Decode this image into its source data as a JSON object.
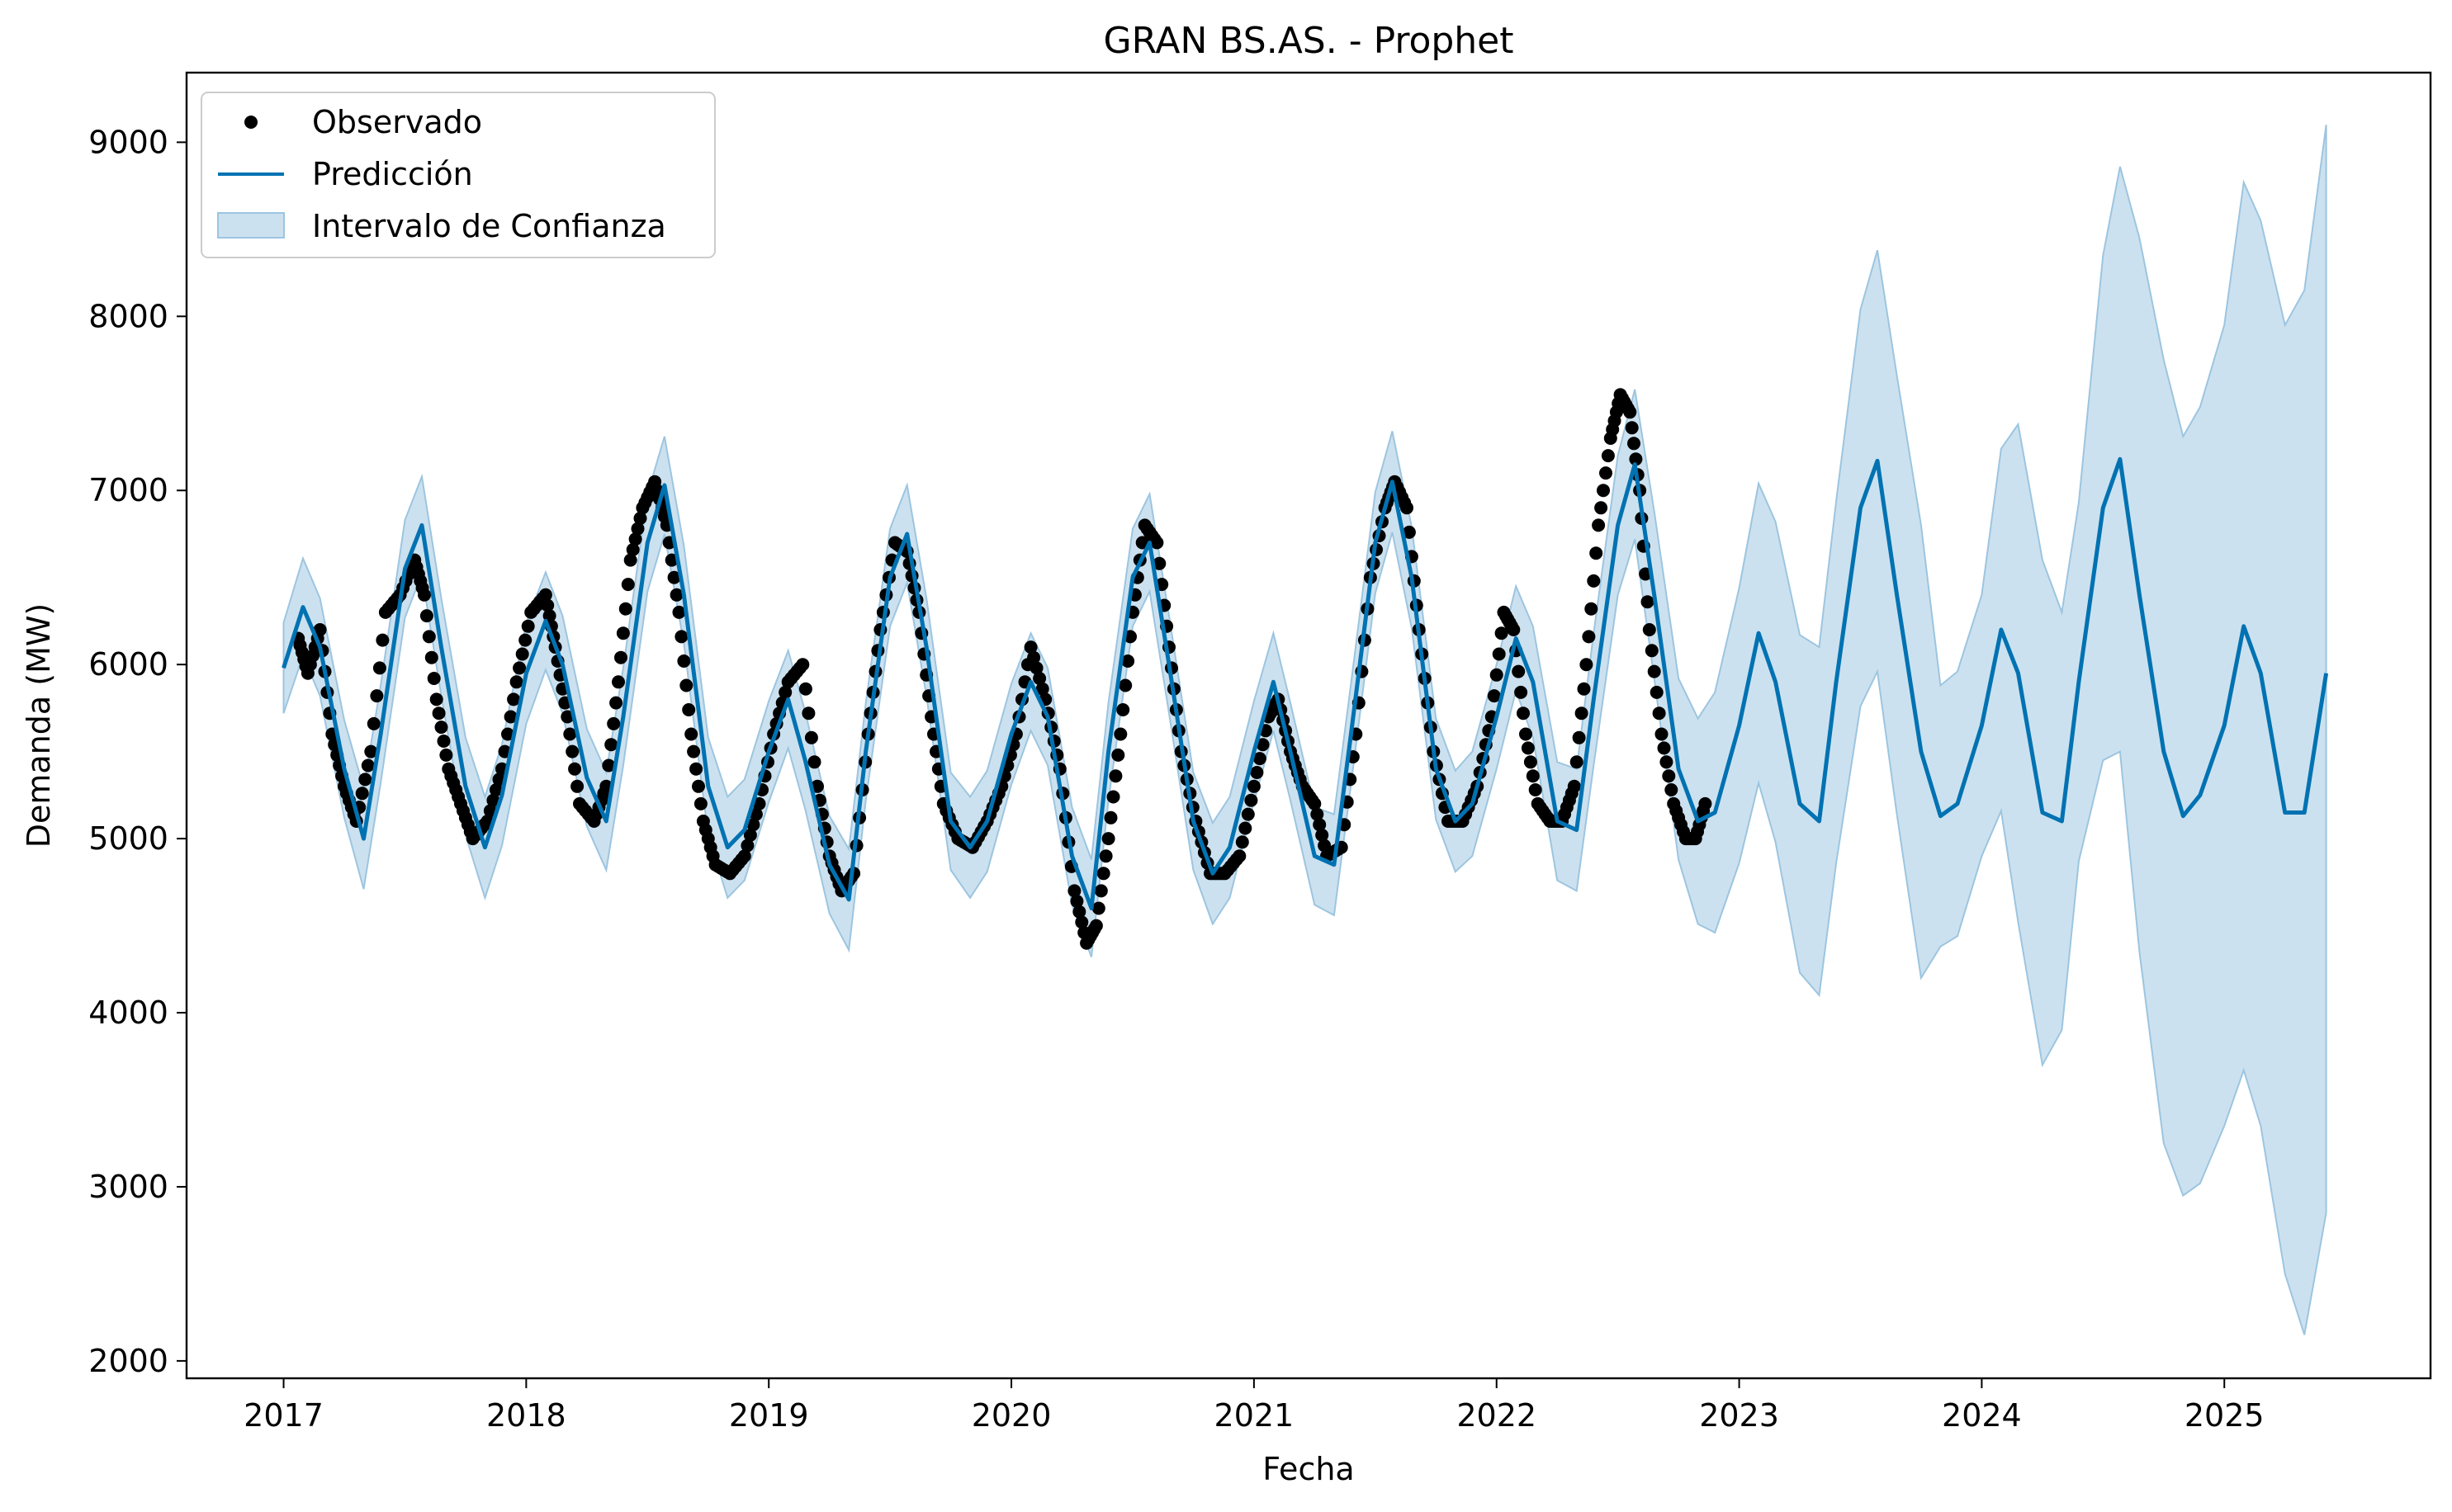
{
  "chart_data": {
    "type": "line",
    "title": "GRAN BS.AS. - Prophet",
    "xlabel": "Fecha",
    "ylabel": "Demanda (MW)",
    "xlim": [
      2016.6,
      2025.85
    ],
    "ylim": [
      1900,
      9400
    ],
    "x_ticks": [
      "2017",
      "2018",
      "2019",
      "2020",
      "2021",
      "2022",
      "2023",
      "2024",
      "2025"
    ],
    "y_ticks": [
      "2000",
      "3000",
      "4000",
      "5000",
      "6000",
      "7000",
      "8000",
      "9000"
    ],
    "legend": {
      "position": "top-left",
      "entries": [
        "Observado",
        "Predicción",
        "Intervalo de Confianza"
      ]
    },
    "colors": {
      "observed": "#000000",
      "prediction": "#0072b2",
      "interval_fill": "#cce1ef",
      "interval_edge": "#9cc5e0"
    },
    "series": [
      {
        "name": "Predicción",
        "x": [
          2017.0,
          2017.08,
          2017.15,
          2017.25,
          2017.33,
          2017.4,
          2017.5,
          2017.57,
          2017.65,
          2017.75,
          2017.83,
          2017.9,
          2018.0,
          2018.08,
          2018.15,
          2018.25,
          2018.33,
          2018.4,
          2018.5,
          2018.57,
          2018.65,
          2018.75,
          2018.83,
          2018.9,
          2019.0,
          2019.08,
          2019.15,
          2019.25,
          2019.33,
          2019.4,
          2019.5,
          2019.57,
          2019.65,
          2019.75,
          2019.83,
          2019.9,
          2020.0,
          2020.08,
          2020.15,
          2020.25,
          2020.33,
          2020.4,
          2020.5,
          2020.57,
          2020.65,
          2020.75,
          2020.83,
          2020.9,
          2021.0,
          2021.08,
          2021.15,
          2021.25,
          2021.33,
          2021.4,
          2021.5,
          2021.57,
          2021.65,
          2021.75,
          2021.83,
          2021.9,
          2022.0,
          2022.08,
          2022.15,
          2022.25,
          2022.33,
          2022.4,
          2022.5,
          2022.57,
          2022.65,
          2022.75,
          2022.83,
          2022.9,
          2023.0,
          2023.08,
          2023.15,
          2023.25,
          2023.33,
          2023.4,
          2023.5,
          2023.57,
          2023.65,
          2023.75,
          2023.83,
          2023.9,
          2024.0,
          2024.08,
          2024.15,
          2024.25,
          2024.33,
          2024.4,
          2024.5,
          2024.57,
          2024.65,
          2024.75,
          2024.83,
          2024.9,
          2025.0,
          2025.08,
          2025.15,
          2025.25,
          2025.33,
          2025.42
        ],
        "y": [
          5980,
          6330,
          6100,
          5400,
          5000,
          5600,
          6550,
          6800,
          6100,
          5300,
          4950,
          5250,
          5950,
          6250,
          6000,
          5350,
          5100,
          5700,
          6700,
          7030,
          6400,
          5300,
          4950,
          5050,
          5500,
          5800,
          5450,
          4850,
          4650,
          5500,
          6500,
          6750,
          6100,
          5100,
          4950,
          5100,
          5600,
          5900,
          5700,
          4900,
          4600,
          5500,
          6500,
          6700,
          6000,
          5100,
          4800,
          4950,
          5500,
          5900,
          5500,
          4900,
          4850,
          5600,
          6700,
          7050,
          6500,
          5400,
          5100,
          5200,
          5700,
          6150,
          5900,
          5100,
          5050,
          5800,
          6800,
          7150,
          6400,
          5400,
          5100,
          5150,
          5650,
          6180,
          5900,
          5200,
          5100,
          5900,
          6900,
          7170,
          6400,
          5500,
          5130,
          5200,
          5650,
          6200,
          5950,
          5150,
          5100,
          5900,
          6900,
          7180,
          6400,
          5500,
          5130,
          5250,
          5650,
          6220,
          5950,
          5150,
          5150,
          5950
        ]
      },
      {
        "name": "Intervalo de Confianza",
        "x": [
          2017.0,
          2017.08,
          2017.15,
          2017.25,
          2017.33,
          2017.4,
          2017.5,
          2017.57,
          2017.65,
          2017.75,
          2017.83,
          2017.9,
          2018.0,
          2018.08,
          2018.15,
          2018.25,
          2018.33,
          2018.4,
          2018.5,
          2018.57,
          2018.65,
          2018.75,
          2018.83,
          2018.9,
          2019.0,
          2019.08,
          2019.15,
          2019.25,
          2019.33,
          2019.4,
          2019.5,
          2019.57,
          2019.65,
          2019.75,
          2019.83,
          2019.9,
          2020.0,
          2020.08,
          2020.15,
          2020.25,
          2020.33,
          2020.4,
          2020.5,
          2020.57,
          2020.65,
          2020.75,
          2020.83,
          2020.9,
          2021.0,
          2021.08,
          2021.15,
          2021.25,
          2021.33,
          2021.4,
          2021.5,
          2021.57,
          2021.65,
          2021.75,
          2021.83,
          2021.9,
          2022.0,
          2022.08,
          2022.15,
          2022.25,
          2022.33,
          2022.4,
          2022.5,
          2022.57,
          2022.65,
          2022.75,
          2022.83,
          2022.9,
          2023.0,
          2023.08,
          2023.15,
          2023.25,
          2023.33,
          2023.4,
          2023.5,
          2023.57,
          2023.65,
          2023.75,
          2023.83,
          2023.9,
          2024.0,
          2024.08,
          2024.15,
          2024.25,
          2024.33,
          2024.4,
          2024.5,
          2024.57,
          2024.65,
          2024.75,
          2024.83,
          2024.9,
          2025.0,
          2025.08,
          2025.15,
          2025.25,
          2025.33,
          2025.42
        ],
        "lower": [
          5720,
          6050,
          5820,
          5120,
          4710,
          5320,
          6270,
          6520,
          5820,
          5020,
          4660,
          4960,
          5660,
          5970,
          5720,
          5070,
          4820,
          5420,
          6420,
          6750,
          6120,
          5020,
          4660,
          4760,
          5210,
          5520,
          5170,
          4570,
          4360,
          5220,
          6220,
          6470,
          5820,
          4820,
          4660,
          4810,
          5310,
          5620,
          5420,
          4620,
          4320,
          5220,
          6220,
          6420,
          5720,
          4820,
          4510,
          4660,
          5210,
          5620,
          5220,
          4620,
          4560,
          5310,
          6410,
          6760,
          6210,
          5110,
          4810,
          4900,
          5400,
          5850,
          5580,
          4760,
          4700,
          5420,
          6400,
          6720,
          5920,
          4880,
          4510,
          4460,
          4860,
          5320,
          4980,
          4230,
          4100,
          4860,
          5760,
          5960,
          5140,
          4200,
          4380,
          4440,
          4900,
          5160,
          4520,
          3700,
          3900,
          4870,
          5450,
          5500,
          4350,
          3250,
          2950,
          3020,
          3350,
          3670,
          3350,
          2500,
          2150,
          2850
        ],
        "upper": [
          6240,
          6610,
          6380,
          5680,
          5290,
          5880,
          6830,
          7080,
          6380,
          5580,
          5240,
          5540,
          6240,
          6530,
          6280,
          5630,
          5380,
          5980,
          6980,
          7310,
          6680,
          5580,
          5240,
          5340,
          5790,
          6080,
          5730,
          5130,
          4940,
          5780,
          6780,
          7030,
          6380,
          5380,
          5240,
          5390,
          5890,
          6180,
          5980,
          5180,
          4880,
          5780,
          6780,
          6980,
          6280,
          5380,
          5090,
          5240,
          5790,
          6180,
          5780,
          5180,
          5140,
          5890,
          6990,
          7340,
          6790,
          5690,
          5390,
          5500,
          6000,
          6450,
          6220,
          5440,
          5400,
          6180,
          7200,
          7580,
          6880,
          5920,
          5690,
          5840,
          6440,
          7040,
          6820,
          6170,
          6100,
          6940,
          8040,
          8380,
          7660,
          6800,
          5880,
          5960,
          6400,
          7240,
          7380,
          6600,
          6300,
          6930,
          8350,
          8860,
          8450,
          7750,
          7310,
          7480,
          7950,
          8770,
          8550,
          7950,
          8150,
          9100
        ]
      },
      {
        "name": "Observado",
        "x": [
          2017.06,
          2017.1,
          2017.15,
          2017.2,
          2017.25,
          2017.3,
          2017.36,
          2017.42,
          2017.48,
          2017.54,
          2017.58,
          2017.63,
          2017.68,
          2017.73,
          2017.78,
          2017.84,
          2017.9,
          2017.96,
          2018.02,
          2018.08,
          2018.12,
          2018.17,
          2018.22,
          2018.28,
          2018.33,
          2018.38,
          2018.43,
          2018.48,
          2018.53,
          2018.58,
          2018.63,
          2018.68,
          2018.73,
          2018.78,
          2018.84,
          2018.9,
          2018.96,
          2019.02,
          2019.08,
          2019.14,
          2019.2,
          2019.25,
          2019.3,
          2019.35,
          2019.41,
          2019.46,
          2019.52,
          2019.57,
          2019.62,
          2019.67,
          2019.72,
          2019.78,
          2019.84,
          2019.9,
          2019.96,
          2020.02,
          2020.08,
          2020.14,
          2020.2,
          2020.26,
          2020.31,
          2020.35,
          2020.4,
          2020.45,
          2020.5,
          2020.55,
          2020.6,
          2020.65,
          2020.7,
          2020.76,
          2020.82,
          2020.88,
          2020.94,
          2021.0,
          2021.06,
          2021.1,
          2021.15,
          2021.2,
          2021.25,
          2021.3,
          2021.36,
          2021.42,
          2021.48,
          2021.54,
          2021.58,
          2021.63,
          2021.68,
          2021.74,
          2021.8,
          2021.86,
          2021.92,
          2021.98,
          2022.03,
          2022.07,
          2022.12,
          2022.17,
          2022.22,
          2022.27,
          2022.32,
          2022.37,
          2022.42,
          2022.47,
          2022.51,
          2022.55,
          2022.59,
          2022.63,
          2022.68,
          2022.73,
          2022.78,
          2022.82,
          2022.86
        ],
        "y": [
          6150,
          5950,
          6200,
          5600,
          5300,
          5100,
          5500,
          6300,
          6400,
          6600,
          6400,
          5800,
          5400,
          5200,
          5000,
          5100,
          5400,
          5900,
          6300,
          6400,
          6100,
          5700,
          5200,
          5100,
          5300,
          5900,
          6600,
          6900,
          7050,
          6800,
          6300,
          5600,
          5100,
          4850,
          4800,
          4900,
          5200,
          5600,
          5900,
          6000,
          5300,
          4900,
          4700,
          4800,
          5600,
          6200,
          6700,
          6650,
          6300,
          5700,
          5200,
          5000,
          4950,
          5100,
          5300,
          5600,
          6100,
          5800,
          5400,
          4700,
          4400,
          4500,
          5000,
          5600,
          6300,
          6800,
          6700,
          6100,
          5500,
          5100,
          4800,
          4800,
          4900,
          5300,
          5700,
          5800,
          5500,
          5300,
          5200,
          4900,
          4950,
          5600,
          6500,
          6900,
          7050,
          6900,
          6200,
          5500,
          5100,
          5100,
          5300,
          5700,
          6300,
          6200,
          5600,
          5200,
          5100,
          5100,
          5300,
          6000,
          6800,
          7300,
          7550,
          7450,
          7000,
          6200,
          5600,
          5200,
          5000,
          5000,
          5200
        ]
      }
    ]
  }
}
